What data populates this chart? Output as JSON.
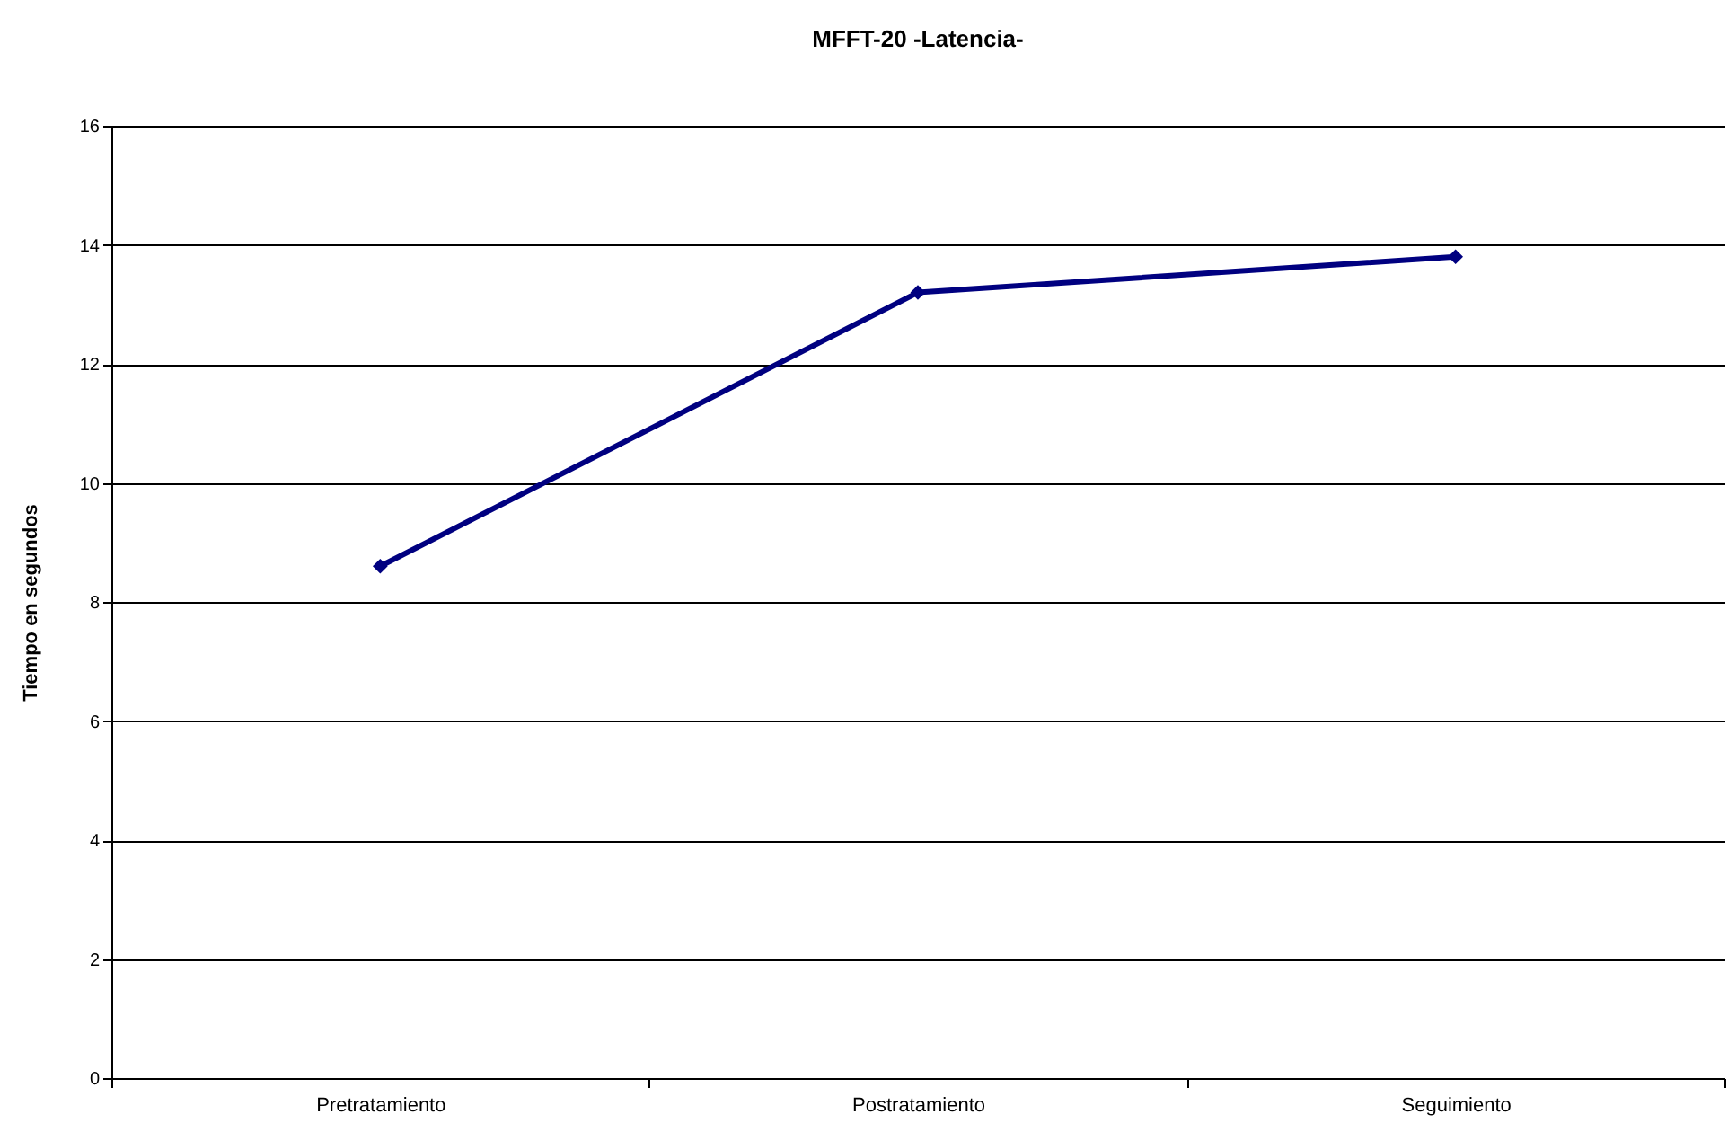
{
  "chart_data": {
    "type": "line",
    "title": "MFFT-20  -Latencia-",
    "ylabel": "Tiempo en segundos",
    "categories": [
      "Pretratamiento",
      "Postratamiento",
      "Seguimiento"
    ],
    "series": [
      {
        "color": "#000080",
        "values": [
          8.6,
          13.2,
          13.8
        ]
      }
    ],
    "ylim": [
      0,
      16
    ],
    "yticks": [
      0,
      2,
      4,
      6,
      8,
      10,
      12,
      14,
      16
    ],
    "grid": "y",
    "marker": "diamond",
    "legend": false
  }
}
